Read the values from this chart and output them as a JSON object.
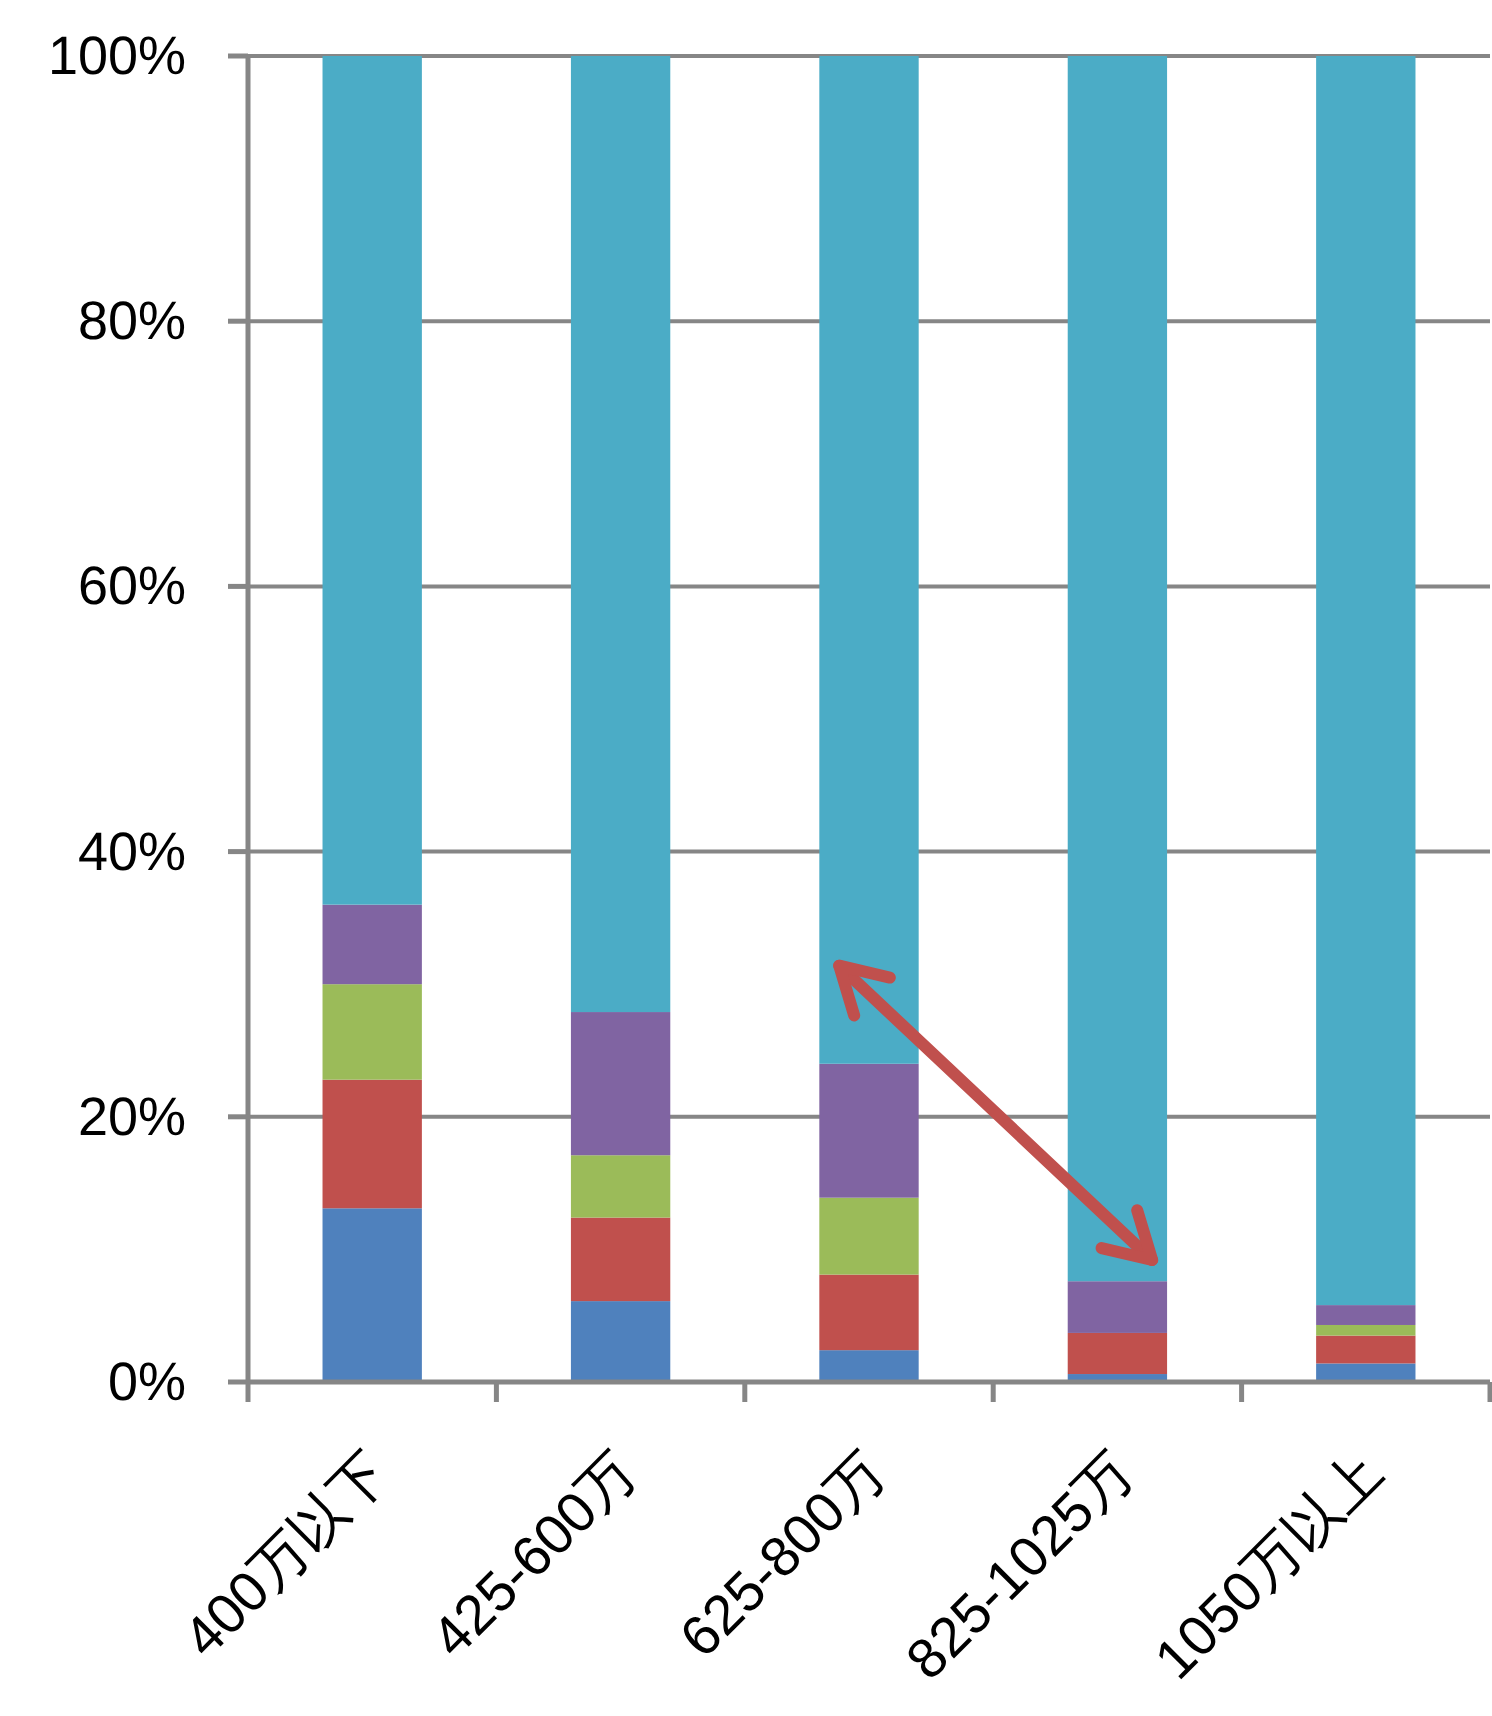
{
  "chart_data": {
    "type": "bar",
    "stacked": true,
    "categories": [
      "400万以下",
      "425-600万",
      "625-800万",
      "825-1025万",
      "1050万以上"
    ],
    "series": [
      {
        "color": "#4f81bd",
        "values": [
          13.1,
          6.1,
          2.4,
          0.6,
          1.4
        ]
      },
      {
        "color": "#c0504d",
        "values": [
          9.7,
          6.3,
          5.7,
          3.1,
          2.1
        ]
      },
      {
        "color": "#9bbb59",
        "values": [
          7.2,
          4.7,
          5.8,
          0,
          0.8
        ]
      },
      {
        "color": "#8064a2",
        "values": [
          6.0,
          10.8,
          10.1,
          3.9,
          1.5
        ]
      },
      {
        "color": "#4bacc6",
        "values": [
          64.0,
          72.1,
          76.0,
          92.4,
          94.2
        ]
      }
    ],
    "ylim": [
      0,
      100
    ],
    "yticks": [
      {
        "value": 0,
        "label": "0%"
      },
      {
        "value": 20,
        "label": "20%"
      },
      {
        "value": 40,
        "label": "40%"
      },
      {
        "value": 60,
        "label": "60%"
      },
      {
        "value": 80,
        "label": "80%"
      },
      {
        "value": 100,
        "label": "100%"
      }
    ],
    "grid": "y"
  }
}
